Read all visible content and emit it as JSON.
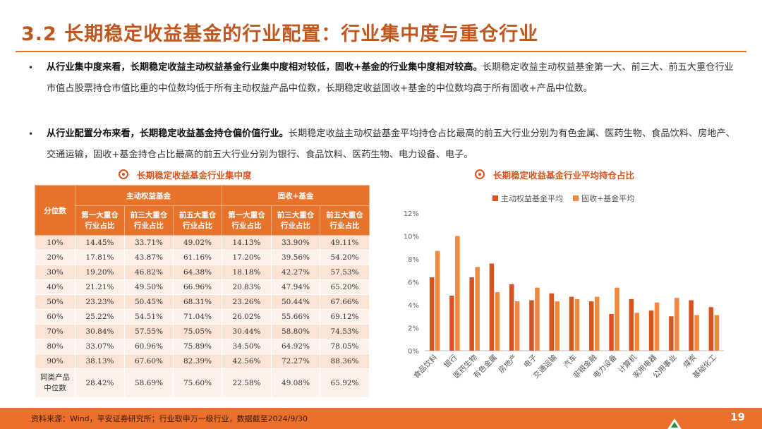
{
  "page": {
    "title": "3.2 长期稳定收益基金的行业配置：行业集中度与重仓行业",
    "page_number": "19",
    "source": "资料来源：Wind，平安证券研究所；行业取申万一级行业，数据截至2024/9/30"
  },
  "bullets": [
    {
      "dot": "•",
      "bold": "从行业集中度来看，长期稳定收益主动权益基金行业集中度相对较低，固收+基金的行业集中度相对较高。",
      "rest": "长期稳定收益主动权益基金第一大、前三大、前五大重仓行业市值占股票持仓市值比重的中位数均低于所有主动权益产品中位数，长期稳定收益固收+基金的中位数均高于所有固收+产品中位数。"
    },
    {
      "dot": "•",
      "bold": "从行业配置分布来看，长期稳定收益基金持仓偏价值行业。",
      "rest": "长期稳定收益主动权益基金平均持仓占比最高的前五大行业分别为有色金属、医药生物、食品饮料、房地产、交通运输，固收+基金持仓占比最高的前五大行业分别为银行、食品饮料、医药生物、电力设备、电子。"
    }
  ],
  "table": {
    "heading": "长期稳定收益基金行业集中度",
    "corner": "分位数",
    "group1": "主动权益基金",
    "group2": "固收+基金",
    "sub1": [
      "第一大重仓",
      "行业占比"
    ],
    "sub2": [
      "前三大重仓",
      "行业占比"
    ],
    "sub3": [
      "前五大重仓",
      "行业占比"
    ],
    "rows": [
      {
        "label": "10%",
        "v": [
          "14.45%",
          "33.71%",
          "49.02%",
          "14.13%",
          "33.90%",
          "49.11%"
        ]
      },
      {
        "label": "20%",
        "v": [
          "17.81%",
          "43.87%",
          "61.16%",
          "17.20%",
          "39.56%",
          "54.20%"
        ]
      },
      {
        "label": "30%",
        "v": [
          "19.20%",
          "46.82%",
          "64.38%",
          "18.18%",
          "42.27%",
          "57.53%"
        ]
      },
      {
        "label": "40%",
        "v": [
          "21.21%",
          "49.50%",
          "66.96%",
          "20.83%",
          "47.94%",
          "65.20%"
        ]
      },
      {
        "label": "50%",
        "v": [
          "23.23%",
          "50.45%",
          "68.31%",
          "23.26%",
          "50.44%",
          "67.66%"
        ]
      },
      {
        "label": "60%",
        "v": [
          "25.22%",
          "54.51%",
          "71.04%",
          "26.02%",
          "55.66%",
          "69.12%"
        ]
      },
      {
        "label": "70%",
        "v": [
          "30.84%",
          "57.55%",
          "75.05%",
          "30.44%",
          "58.80%",
          "74.53%"
        ]
      },
      {
        "label": "80%",
        "v": [
          "33.07%",
          "60.96%",
          "75.89%",
          "34.50%",
          "64.92%",
          "78.05%"
        ]
      },
      {
        "label": "90%",
        "v": [
          "38.13%",
          "67.60%",
          "82.39%",
          "42.56%",
          "72.27%",
          "88.36%"
        ]
      }
    ],
    "last_row": {
      "label1": "同类产品",
      "label2": "中位数",
      "v": [
        "28.42%",
        "58.69%",
        "75.60%",
        "22.58%",
        "49.08%",
        "65.92%"
      ]
    }
  },
  "chart_data": {
    "type": "bar",
    "title": "长期稳定收益基金行业平均持仓占比",
    "categories": [
      "食品饮料",
      "银行",
      "医药生物",
      "有色金属",
      "房地产",
      "电子",
      "交通运输",
      "汽车",
      "非银金融",
      "电力设备",
      "计算机",
      "家用电器",
      "公用事业",
      "煤炭",
      "基础化工"
    ],
    "series": [
      {
        "name": "主动权益基金平均",
        "color": "#d9531e",
        "values": [
          6.4,
          4.8,
          6.4,
          7.6,
          5.8,
          4.4,
          5.0,
          4.7,
          4.3,
          3.2,
          4.5,
          3.5,
          3.0,
          4.4,
          3.8
        ]
      },
      {
        "name": "固收+基金平均",
        "color": "#f0883e",
        "values": [
          8.7,
          10.0,
          7.3,
          5.1,
          4.3,
          5.5,
          4.3,
          4.5,
          4.7,
          5.5,
          3.3,
          4.2,
          4.6,
          3.1,
          3.1
        ]
      }
    ],
    "yticks": [
      "0%",
      "2%",
      "4%",
      "6%",
      "8%",
      "10%",
      "12%"
    ],
    "ylim": [
      0,
      12
    ],
    "legend_position": "top"
  }
}
